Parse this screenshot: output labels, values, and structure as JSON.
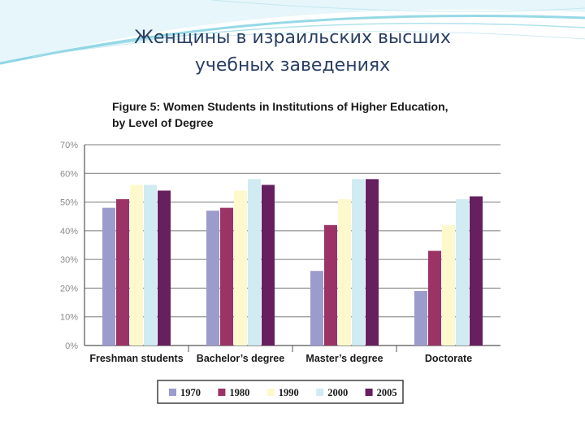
{
  "slide": {
    "title_line1": "Женщины в израильских высших",
    "title_line2": "учебных заведениях"
  },
  "colors": {
    "title": "#2a3f63",
    "swoosh": "#7ccfe0",
    "1970": "#9b9bcc",
    "1980": "#9c3366",
    "1990": "#fdf9cc",
    "2000": "#d0ebf2",
    "2005": "#662060"
  },
  "chart_data": {
    "type": "bar",
    "title": "Figure 5: Women Students in Institutions of Higher Education,",
    "subtitle": "by Level of Degree",
    "xlabel": "",
    "ylabel": "",
    "ylim": [
      0,
      70
    ],
    "y_ticks": [
      "0%",
      "10%",
      "20%",
      "30%",
      "40%",
      "50%",
      "60%",
      "70%"
    ],
    "grid": true,
    "legend_position": "bottom",
    "categories": [
      "Freshman students",
      "Bachelor’s degree",
      "Master’s degree",
      "Doctorate"
    ],
    "series": [
      {
        "name": "1970",
        "values": [
          48,
          47,
          26,
          19
        ]
      },
      {
        "name": "1980",
        "values": [
          51,
          48,
          42,
          33
        ]
      },
      {
        "name": "1990",
        "values": [
          56,
          54,
          51,
          42
        ]
      },
      {
        "name": "2000",
        "values": [
          56,
          58,
          58,
          51
        ]
      },
      {
        "name": "2005",
        "values": [
          54,
          56,
          58,
          52
        ]
      }
    ]
  }
}
